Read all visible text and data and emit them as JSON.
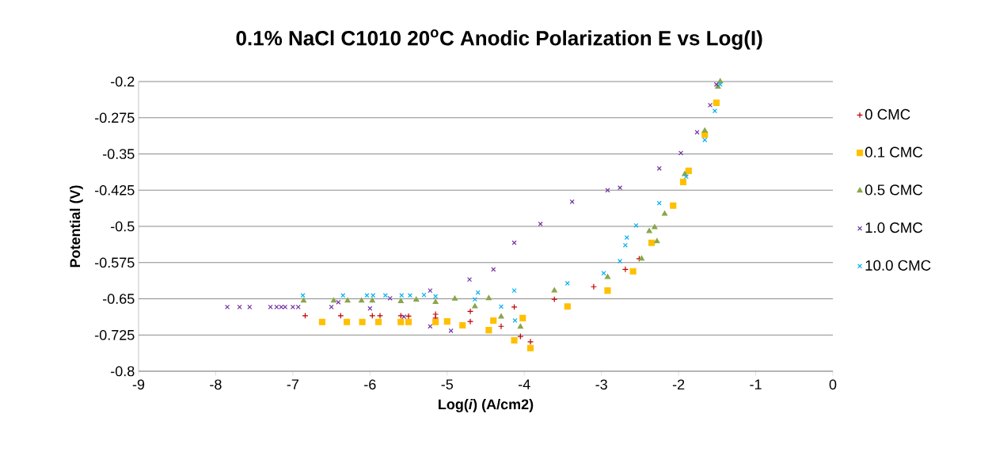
{
  "chart_data": {
    "type": "scatter",
    "title": "0.1% NaCl C1010 20$^{o}$C Anodic Polarization E vs Log(I)",
    "xlabel": "Log(*i*) (A/cm2)",
    "ylabel": "Potential (V)",
    "xlim": [
      -9,
      0
    ],
    "xticks": [
      -9,
      -8,
      -7,
      -6,
      -5,
      -4,
      -3,
      -2,
      -1,
      0
    ],
    "ylim": [
      -0.8,
      -0.2
    ],
    "yticks": [
      -0.8,
      -0.725,
      -0.65,
      -0.575,
      -0.5,
      -0.425,
      -0.35,
      -0.275,
      -0.2
    ],
    "grid": "y",
    "legend": "right",
    "series": [
      {
        "name": "0 CMC",
        "color": "#c00000",
        "marker": "plus",
        "x": [
          -3.92,
          -4.05,
          -4.3,
          -4.7,
          -5.15,
          -5.5,
          -5.87,
          -5.97,
          -6.38,
          -6.84,
          -5.6,
          -5.15,
          -4.7,
          -4.13,
          -3.61,
          -3.1,
          -2.69,
          -2.51
        ],
        "values": [
          -0.739,
          -0.728,
          -0.707,
          -0.697,
          -0.69,
          -0.686,
          -0.685,
          -0.685,
          -0.685,
          -0.685,
          -0.685,
          -0.682,
          -0.676,
          -0.667,
          -0.651,
          -0.625,
          -0.589,
          -0.567
        ]
      },
      {
        "name": "0.1 CMC",
        "color": "#ffc000",
        "marker": "square",
        "x": [
          -3.92,
          -4.13,
          -4.46,
          -4.8,
          -5.15,
          -5.5,
          -5.89,
          -6.1,
          -6.3,
          -6.62,
          -5.6,
          -5.0,
          -4.4,
          -4.02,
          -3.44,
          -2.92,
          -2.59,
          -2.35,
          -2.07,
          -1.94,
          -1.87,
          -1.66,
          -1.51
        ],
        "values": [
          -0.752,
          -0.736,
          -0.715,
          -0.705,
          -0.698,
          -0.698,
          -0.698,
          -0.698,
          -0.698,
          -0.698,
          -0.698,
          -0.697,
          -0.695,
          -0.69,
          -0.666,
          -0.633,
          -0.593,
          -0.534,
          -0.457,
          -0.408,
          -0.385,
          -0.31,
          -0.244
        ]
      },
      {
        "name": "0.5 CMC",
        "color": "#8aa64a",
        "marker": "triangle",
        "x": [
          -4.05,
          -4.3,
          -4.64,
          -5.15,
          -5.6,
          -5.97,
          -6.11,
          -6.29,
          -6.47,
          -6.86,
          -5.4,
          -4.9,
          -4.46,
          -3.61,
          -2.92,
          -2.48,
          -2.28,
          -2.38,
          -2.31,
          -2.18,
          -1.92,
          -1.66,
          -1.49,
          -1.46
        ],
        "values": [
          -0.708,
          -0.687,
          -0.666,
          -0.657,
          -0.655,
          -0.654,
          -0.654,
          -0.654,
          -0.654,
          -0.654,
          -0.652,
          -0.65,
          -0.649,
          -0.633,
          -0.605,
          -0.567,
          -0.531,
          -0.51,
          -0.502,
          -0.474,
          -0.392,
          -0.302,
          -0.211,
          -0.2
        ]
      },
      {
        "name": "1.0 CMC",
        "color": "#7030a0",
        "marker": "cross",
        "x": [
          -4.95,
          -5.22,
          -5.56,
          -6.0,
          -6.5,
          -6.93,
          -7.0,
          -7.1,
          -7.15,
          -7.21,
          -7.29,
          -7.56,
          -7.69,
          -7.85,
          -6.41,
          -5.74,
          -5.22,
          -4.71,
          -4.4,
          -4.13,
          -3.79,
          -3.38,
          -2.92,
          -2.76,
          -2.25,
          -1.97,
          -1.76,
          -1.59,
          -1.51
        ],
        "values": [
          -0.716,
          -0.707,
          -0.687,
          -0.67,
          -0.667,
          -0.667,
          -0.667,
          -0.667,
          -0.667,
          -0.667,
          -0.667,
          -0.667,
          -0.667,
          -0.667,
          -0.657,
          -0.649,
          -0.633,
          -0.61,
          -0.589,
          -0.534,
          -0.495,
          -0.449,
          -0.425,
          -0.42,
          -0.38,
          -0.348,
          -0.305,
          -0.249,
          -0.206
        ]
      },
      {
        "name": "10.0 CMC",
        "color": "#00b0f0",
        "marker": "cross",
        "x": [
          -4.12,
          -4.3,
          -4.64,
          -5.15,
          -5.48,
          -5.59,
          -5.8,
          -5.96,
          -6.04,
          -6.35,
          -6.87,
          -5.3,
          -4.6,
          -4.13,
          -3.44,
          -2.97,
          -2.76,
          -2.69,
          -2.67,
          -2.55,
          -2.25,
          -1.9,
          -1.66,
          -1.53,
          -1.46
        ],
        "values": [
          -0.695,
          -0.666,
          -0.651,
          -0.645,
          -0.643,
          -0.643,
          -0.643,
          -0.643,
          -0.643,
          -0.643,
          -0.643,
          -0.642,
          -0.637,
          -0.633,
          -0.618,
          -0.597,
          -0.572,
          -0.539,
          -0.523,
          -0.498,
          -0.452,
          -0.397,
          -0.321,
          -0.261,
          -0.206
        ]
      }
    ]
  }
}
